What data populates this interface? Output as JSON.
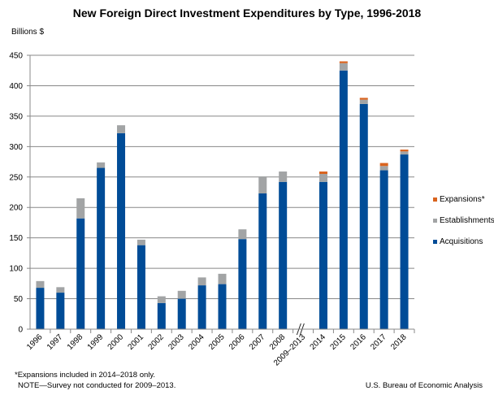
{
  "chart_data": {
    "type": "bar",
    "stacked": true,
    "title": "New Foreign Direct Investment Expenditures by Type, 1996-2018",
    "ylabel": "Billions $",
    "xlabel": "",
    "ylim": [
      0,
      450
    ],
    "yticks": [
      0,
      50,
      100,
      150,
      200,
      250,
      300,
      350,
      400,
      450
    ],
    "grid": true,
    "legend_position": "right",
    "categories": [
      "1996",
      "1997",
      "1998",
      "1999",
      "2000",
      "2001",
      "2002",
      "2003",
      "2004",
      "2005",
      "2006",
      "2007",
      "2008",
      "2009–2013",
      "2014",
      "2015",
      "2016",
      "2017",
      "2018"
    ],
    "axis_break_after": "2008",
    "series": [
      {
        "name": "Acquisitions",
        "color": "#004C97",
        "values": [
          68,
          60,
          182,
          265,
          322,
          138,
          43,
          50,
          72,
          74,
          148,
          223,
          242,
          null,
          242,
          425,
          370,
          261,
          287
        ]
      },
      {
        "name": "Establishments",
        "color": "#A2A4A5",
        "values": [
          11,
          9,
          33,
          9,
          13,
          9,
          11,
          13,
          13,
          17,
          16,
          28,
          17,
          null,
          13,
          12,
          7,
          7,
          5
        ]
      },
      {
        "name": "Expansions*",
        "color": "#D9631E",
        "values": [
          null,
          null,
          null,
          null,
          null,
          null,
          null,
          null,
          null,
          null,
          null,
          null,
          null,
          null,
          4,
          3,
          3,
          5,
          3
        ]
      }
    ]
  },
  "footnotes": {
    "expansions": "*Expansions included in 2014–2018 only.",
    "note": "NOTE—Survey not conducted for 2009–2013.",
    "source": "U.S. Bureau of Economic Analysis"
  }
}
